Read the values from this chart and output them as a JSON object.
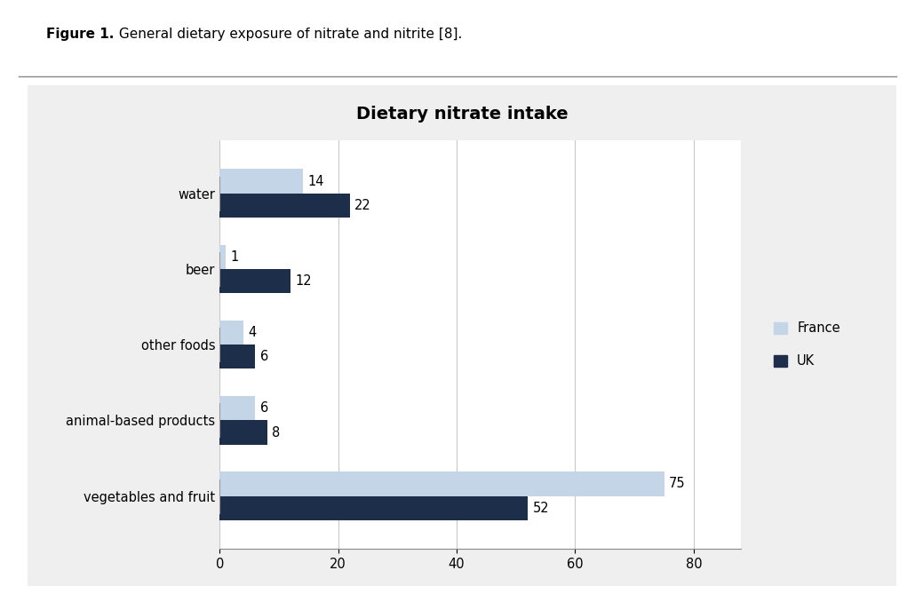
{
  "title": "Dietary nitrate intake",
  "caption_bold": "Figure 1.",
  "caption_rest": " General dietary exposure of nitrate and nitrite [8].",
  "categories": [
    "vegetables and fruit",
    "animal-based products",
    "other foods",
    "beer",
    "water"
  ],
  "france_values": [
    75,
    6,
    4,
    1,
    14
  ],
  "uk_values": [
    52,
    8,
    6,
    12,
    22
  ],
  "france_color": "#c5d5e8",
  "uk_color": "#1c2e4a",
  "xlim": [
    0,
    88
  ],
  "xticks": [
    0,
    20,
    40,
    60,
    80
  ],
  "bar_height": 0.32,
  "chart_bg": "#ffffff",
  "outer_bg": "#f0f0f0",
  "page_bg": "#ffffff",
  "title_fontsize": 14,
  "label_fontsize": 10.5,
  "tick_fontsize": 10.5,
  "annotation_fontsize": 10.5,
  "caption_fontsize": 11,
  "legend_france": "France",
  "legend_uk": "UK",
  "grid_color": "#c8c8c8",
  "separator_color": "#888888"
}
